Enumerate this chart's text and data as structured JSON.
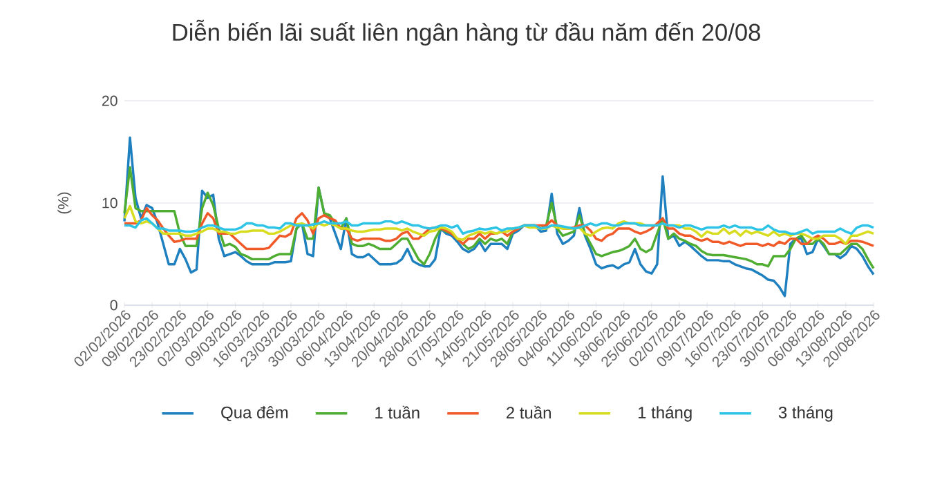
{
  "chart_data": {
    "type": "line",
    "title": "Diễn biến lãi suất liên ngân hàng từ đầu năm đến 20/08",
    "ylabel": "(%)",
    "categories": [
      "02/02/2026",
      null,
      null,
      null,
      null,
      "09/02/2026",
      null,
      null,
      null,
      null,
      "23/02/2026",
      null,
      null,
      null,
      null,
      "02/03/2026",
      null,
      null,
      null,
      null,
      "09/03/2026",
      null,
      null,
      null,
      null,
      "16/03/2026",
      null,
      null,
      null,
      null,
      "23/03/2026",
      null,
      null,
      null,
      null,
      "30/03/2026",
      null,
      null,
      null,
      null,
      "06/04/2026",
      null,
      null,
      null,
      null,
      "13/04/2026",
      null,
      null,
      null,
      null,
      "20/04/2026",
      null,
      null,
      null,
      null,
      "28/04/2026",
      null,
      null,
      null,
      null,
      "07/05/2026",
      null,
      null,
      null,
      null,
      "14/05/2026",
      null,
      null,
      null,
      null,
      "21/05/2026",
      null,
      null,
      null,
      null,
      "28/05/2026",
      null,
      null,
      null,
      null,
      "04/06/2026",
      null,
      null,
      null,
      null,
      "11/06/2026",
      null,
      null,
      null,
      null,
      "18/06/2026",
      null,
      null,
      null,
      null,
      "25/06/2026",
      null,
      null,
      null,
      null,
      "02/07/2026",
      null,
      null,
      null,
      null,
      "09/07/2026",
      null,
      null,
      null,
      null,
      "16/07/2026",
      null,
      null,
      null,
      null,
      "23/07/2026",
      null,
      null,
      null,
      null,
      "30/07/2026",
      null,
      null,
      null,
      null,
      "06/08/2026",
      null,
      null,
      null,
      null,
      "13/08/2026",
      null,
      null,
      null,
      null,
      "20/08/2026"
    ],
    "series": [
      {
        "name": "Qua đêm",
        "color": "#1f80c0",
        "values": [
          8.2,
          16.4,
          10.5,
          8.5,
          9.8,
          9.5,
          8,
          6,
          4,
          4,
          5.5,
          4.5,
          3.2,
          3.5,
          11.2,
          10.5,
          10.8,
          6.5,
          4.8,
          5,
          5.2,
          4.8,
          4.3,
          4,
          4,
          4,
          4,
          4.2,
          4.2,
          4.2,
          4.3,
          7.5,
          8,
          5,
          4.8,
          11.5,
          9,
          8.5,
          7,
          5.5,
          8.5,
          5,
          4.7,
          4.7,
          5,
          4.5,
          4,
          4,
          4,
          4.1,
          4.5,
          5.5,
          4.3,
          4,
          3.8,
          3.8,
          4.5,
          7.5,
          7,
          6.8,
          6.2,
          5.5,
          5.2,
          5.5,
          6.2,
          5.3,
          6,
          6,
          6,
          5.5,
          7,
          7.3,
          7.8,
          7.8,
          7.8,
          7.2,
          7.3,
          10.9,
          7,
          6,
          6.3,
          6.8,
          9.5,
          6.8,
          5.5,
          4,
          3.6,
          3.8,
          3.9,
          3.6,
          4,
          4.2,
          5.5,
          4,
          3.3,
          3.1,
          4,
          12.6,
          6.5,
          6.8,
          5.8,
          6.2,
          5.8,
          5.3,
          4.8,
          4.4,
          4.4,
          4.4,
          4.3,
          4.3,
          4,
          3.8,
          3.6,
          3.5,
          3.2,
          2.9,
          2.5,
          2.4,
          1.8,
          0.9,
          6,
          6.5,
          6.5,
          5,
          5.2,
          6.5,
          5.8,
          5,
          5,
          4.6,
          5,
          5.8,
          5.5,
          4.8,
          3.8,
          3
        ]
      },
      {
        "name": "1 tuần",
        "color": "#4fae32",
        "values": [
          9,
          13.5,
          9.5,
          9.2,
          9.2,
          9.2,
          9.2,
          9.2,
          9.2,
          9.2,
          7,
          5.8,
          5.8,
          5.8,
          9.5,
          11,
          9.8,
          7.5,
          5.8,
          6,
          5.7,
          5,
          4.8,
          4.5,
          4.5,
          4.5,
          4.5,
          4.8,
          5,
          5,
          5,
          7.5,
          8,
          6.5,
          6.5,
          11.5,
          9,
          8.8,
          8,
          7.5,
          8.5,
          6,
          5.8,
          5.8,
          6,
          5.8,
          5.5,
          5.5,
          5.5,
          6,
          6.5,
          6.5,
          5.5,
          4.5,
          4,
          5,
          6.5,
          7.5,
          7.2,
          7,
          6.5,
          6,
          5.5,
          5.8,
          6.5,
          6,
          6.5,
          6.3,
          6.5,
          6,
          7.2,
          7.5,
          7.8,
          7.8,
          7.8,
          7.5,
          7.8,
          10,
          7.5,
          6.8,
          7,
          7.2,
          8.8,
          7,
          6,
          5,
          4.8,
          5,
          5.2,
          5.3,
          5.5,
          5.8,
          6.5,
          5.5,
          5.2,
          5.5,
          7,
          8.5,
          6.5,
          7,
          6.5,
          6.3,
          6,
          5.8,
          5.3,
          5,
          4.9,
          4.9,
          4.9,
          4.8,
          4.7,
          4.6,
          4.5,
          4.3,
          4,
          4,
          3.8,
          4.8,
          4.8,
          4.8,
          5.5,
          6.5,
          6.8,
          6,
          6,
          6.5,
          6,
          5,
          5,
          5,
          5.5,
          6,
          6,
          5.5,
          4.5,
          3.6
        ]
      },
      {
        "name": "2 tuần",
        "color": "#f05a28",
        "values": [
          8,
          8,
          8,
          8.3,
          9.5,
          8.8,
          8.3,
          7.5,
          6.8,
          6.2,
          6.3,
          6.5,
          6.5,
          6.5,
          8,
          9,
          8.5,
          7,
          7,
          7,
          6.5,
          6,
          5.5,
          5.5,
          5.5,
          5.5,
          5.6,
          6.2,
          6.8,
          6.7,
          7,
          8.5,
          9,
          8.3,
          7,
          8.5,
          8.8,
          8.5,
          8.3,
          7.5,
          7.5,
          6.5,
          6.3,
          6.5,
          6.5,
          6.5,
          6.5,
          6.3,
          6.3,
          6.5,
          7,
          7.2,
          6.5,
          6.5,
          7,
          7.5,
          7.6,
          7.5,
          7.3,
          7,
          6.5,
          6,
          6.5,
          6.5,
          7,
          6.5,
          7,
          7,
          7.2,
          6.8,
          7.2,
          7.5,
          7.8,
          7.8,
          7.8,
          7.8,
          7.8,
          8.3,
          7.8,
          7.5,
          7.5,
          7.6,
          7.8,
          7.8,
          7.3,
          6.5,
          6.3,
          6.8,
          7,
          7.5,
          7.5,
          7.5,
          7.2,
          7,
          7.2,
          7.5,
          8,
          8.5,
          7.5,
          7.5,
          7,
          6.8,
          6.8,
          6.5,
          6.3,
          6.5,
          6.2,
          6.2,
          6,
          6.2,
          6,
          5.8,
          6,
          6,
          6,
          5.8,
          6,
          5.8,
          6.2,
          6,
          6.5,
          6.5,
          6,
          6,
          6.5,
          6.8,
          6.5,
          6,
          6,
          6.2,
          6,
          6.3,
          6.3,
          6.2,
          6,
          5.8
        ]
      },
      {
        "name": "1 tháng",
        "color": "#d8dc1e",
        "values": [
          8.5,
          9.7,
          8.2,
          8,
          8.2,
          8,
          7.5,
          7,
          7,
          7,
          7,
          6.8,
          6.8,
          7,
          7.2,
          7.5,
          7.5,
          7.2,
          7.2,
          7,
          7,
          7.2,
          7.2,
          7.3,
          7.3,
          7.3,
          7,
          7,
          7.2,
          7.5,
          7.8,
          7.9,
          8,
          7.8,
          7.5,
          8,
          7.8,
          8,
          7.8,
          7.5,
          7.5,
          7.3,
          7.2,
          7.2,
          7.3,
          7.4,
          7.4,
          7.5,
          7.5,
          7.5,
          7.3,
          7.5,
          7.2,
          7,
          6.8,
          7.2,
          7.3,
          7.6,
          7.5,
          7.2,
          6.5,
          6.4,
          6.8,
          7,
          7.2,
          7,
          7.2,
          7,
          7.2,
          7.2,
          7.5,
          7.6,
          7.8,
          7.6,
          7.6,
          7.5,
          7.5,
          7.8,
          7.6,
          7.5,
          7.5,
          7.5,
          7.6,
          7,
          6.8,
          7.2,
          7.5,
          7.6,
          7.5,
          8,
          8.2,
          8,
          8,
          8,
          7.8,
          7.8,
          7.8,
          8,
          7.8,
          7.8,
          7.8,
          7.5,
          7.5,
          7.2,
          6.7,
          7.2,
          7,
          7,
          7.5,
          7,
          7.3,
          6.8,
          7.3,
          7,
          7.2,
          7,
          6.8,
          7.2,
          6.8,
          7,
          6.8,
          7,
          7,
          6.8,
          6.5,
          6.5,
          6.8,
          6.8,
          6.8,
          6.5,
          6,
          6.8,
          6.8,
          7,
          7.2,
          7
        ]
      },
      {
        "name": "3 tháng",
        "color": "#2ec4e6",
        "values": [
          7.8,
          7.8,
          7.6,
          8.3,
          8.5,
          8,
          7.5,
          7.5,
          7.3,
          7.3,
          7.3,
          7.2,
          7.2,
          7.3,
          7.6,
          7.8,
          7.8,
          7.6,
          7.4,
          7.4,
          7.4,
          7.6,
          8,
          8,
          7.8,
          7.8,
          7.6,
          7.6,
          7.5,
          8,
          8,
          7.8,
          7.8,
          7.8,
          7.9,
          8,
          8.2,
          8,
          8,
          8,
          8.2,
          7.8,
          7.8,
          8,
          8,
          8,
          8,
          8.2,
          8.2,
          8,
          8.2,
          8,
          7.8,
          7.8,
          7.6,
          7.5,
          7.6,
          7.8,
          7.8,
          7.6,
          7.8,
          7,
          7.2,
          7.3,
          7.5,
          7.4,
          7.5,
          7.6,
          7.3,
          7.5,
          7.5,
          7.6,
          7.8,
          7.8,
          7.8,
          7.5,
          7.6,
          7.8,
          7.8,
          7.7,
          7.6,
          7.5,
          7.6,
          7.8,
          8,
          7.8,
          8,
          8,
          7.8,
          7.8,
          8,
          8,
          8,
          7.8,
          7.8,
          7.8,
          7.8,
          8,
          7.8,
          7.8,
          7.6,
          7.8,
          7.8,
          7.6,
          7.4,
          7.6,
          7.6,
          7.6,
          7.8,
          7.6,
          7.8,
          7.6,
          7.6,
          7.6,
          7.4,
          7.4,
          7.8,
          7.4,
          7.2,
          7.2,
          7,
          7,
          7.2,
          7.4,
          7,
          7.2,
          7.2,
          7.2,
          7.2,
          7.5,
          7.2,
          7,
          7.6,
          7.8,
          7.8,
          7.6
        ]
      }
    ],
    "ylim": [
      0,
      20
    ],
    "yticks": [
      0,
      10,
      20
    ],
    "grid": "y",
    "legend": "bottom"
  }
}
